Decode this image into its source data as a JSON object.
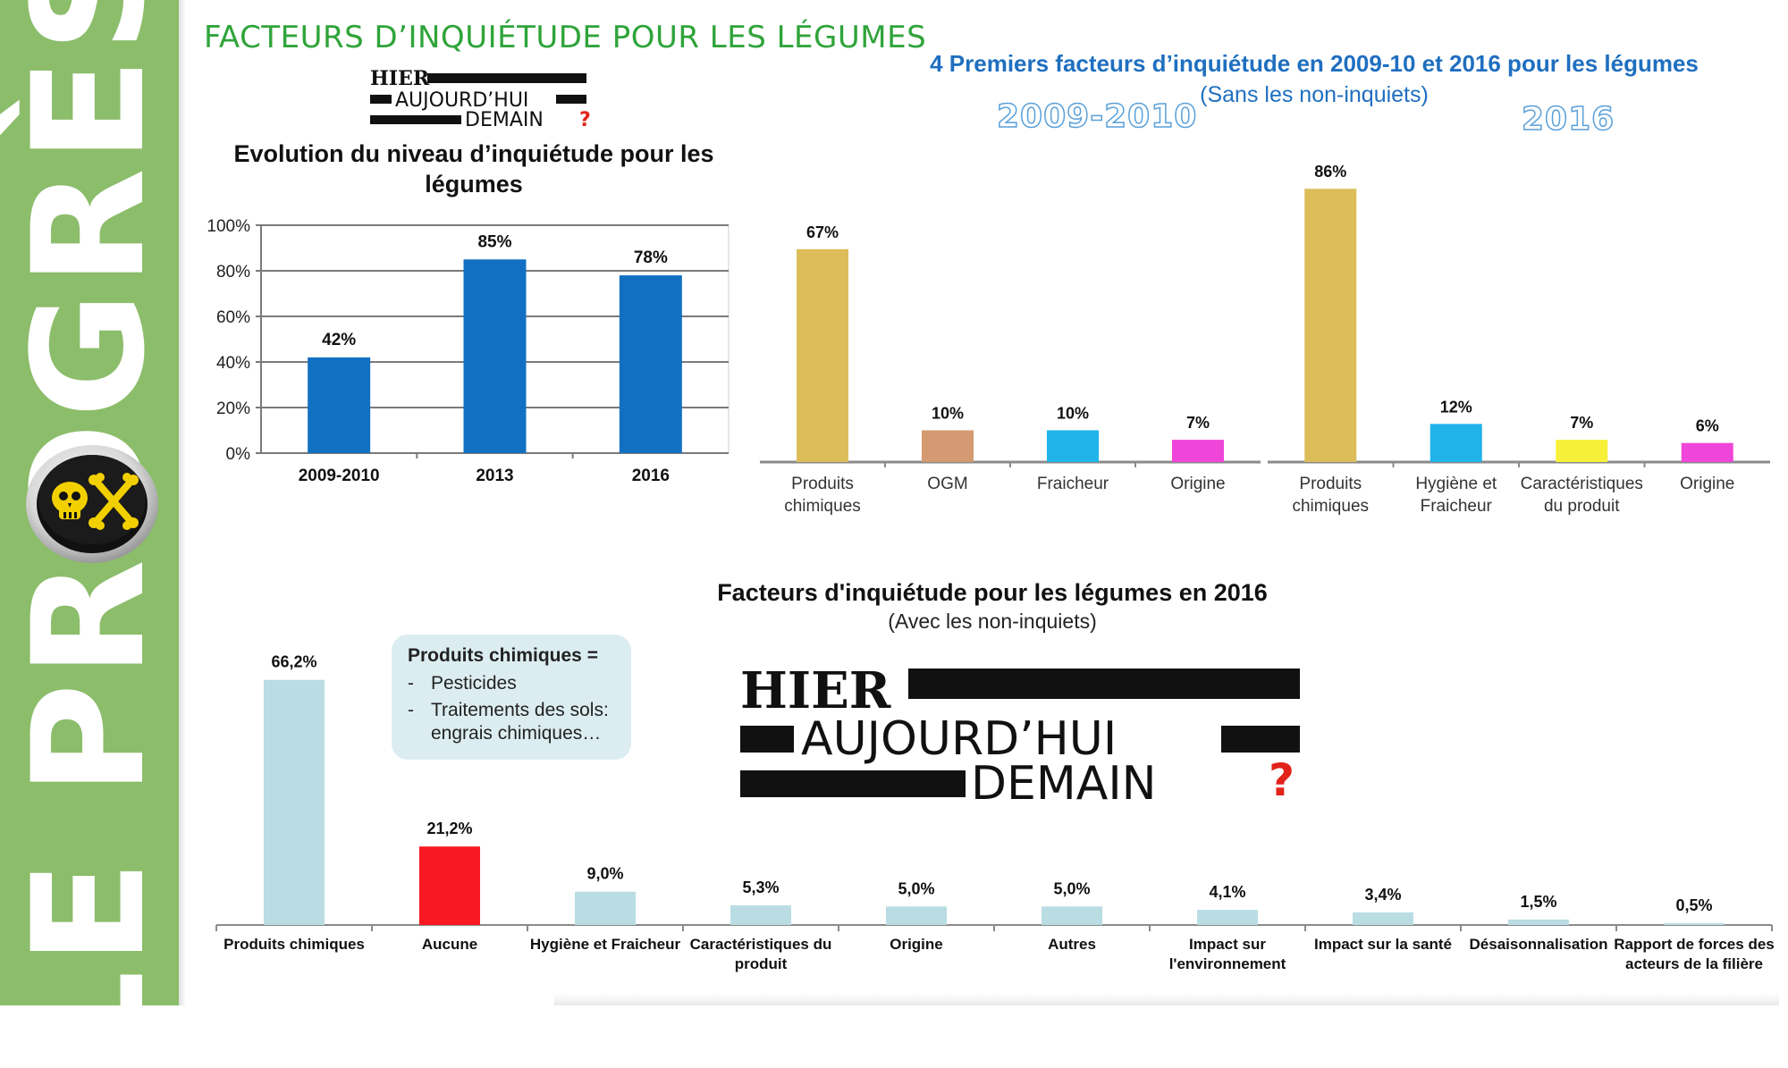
{
  "sidebar": {
    "brand": "LE PROGRÈS",
    "bg_color": "#8cbd6b",
    "badge_icon": "skull-crossbones-icon"
  },
  "page": {
    "heading": "FACTEURS D’INQUIÉTUDE POUR LES LÉGUMES",
    "heading_color": "#2fa43a"
  },
  "logo": {
    "line1": "HIER",
    "line2": "AUJOURD’HUI",
    "line3": "DEMAIN",
    "mark": "?"
  },
  "top": {
    "title": "4 Premiers facteurs d’inquiétude en 2009-10 et 2016 pour les légumes",
    "subtitle": "(Sans les non-inquiets)",
    "year_a": "2009-2010",
    "year_b": "2016"
  },
  "bottom": {
    "title": "Facteurs d'inquiétude pour les légumes en 2016",
    "subtitle": "(Avec les non-inquiets)"
  },
  "callout": {
    "title": "Produits chimiques =",
    "items": [
      "Pesticides",
      "Traitements des sols: engrais chimiques…"
    ]
  },
  "chart_data": [
    {
      "type": "bar",
      "title": "Evolution du niveau d’inquiétude pour les légumes",
      "categories": [
        "2009-2010",
        "2013",
        "2016"
      ],
      "values": [
        42,
        85,
        78
      ],
      "labels": [
        "42%",
        "85%",
        "78%"
      ],
      "yticks": [
        "0%",
        "20%",
        "40%",
        "60%",
        "80%",
        "100%"
      ],
      "ylim": [
        0,
        100
      ],
      "grid": true,
      "color": "#1270c2"
    },
    {
      "type": "bar",
      "title": "2009-2010",
      "categories": [
        "Produits chimiques",
        "OGM",
        "Fraicheur",
        "Origine"
      ],
      "values": [
        67,
        10,
        10,
        7
      ],
      "labels": [
        "67%",
        "10%",
        "10%",
        "7%"
      ],
      "ylim": [
        0,
        90
      ],
      "colors": [
        "#dcbd5a",
        "#d49a72",
        "#1fb3ea",
        "#ef45d8"
      ]
    },
    {
      "type": "bar",
      "title": "2016",
      "categories": [
        "Produits chimiques",
        "Hygiène et Fraicheur",
        "Caractéristiques du produit",
        "Origine"
      ],
      "values": [
        86,
        12,
        7,
        6
      ],
      "labels": [
        "86%",
        "12%",
        "7%",
        "6%"
      ],
      "ylim": [
        0,
        90
      ],
      "colors": [
        "#dcbd5a",
        "#1fb3ea",
        "#f7f03a",
        "#ef45d8"
      ]
    },
    {
      "type": "bar",
      "title": "Facteurs d'inquiétude pour les légumes en 2016",
      "categories": [
        "Produits chimiques",
        "Aucune",
        "Hygiène et Fraicheur",
        "Caractéristiques du produit",
        "Origine",
        "Autres",
        "Impact sur l'environnement",
        "Impact sur la santé",
        "Désaisonnalisation",
        "Rapport de forces des acteurs de la filière"
      ],
      "values": [
        66.2,
        21.2,
        9.0,
        5.3,
        5.0,
        5.0,
        4.1,
        3.4,
        1.5,
        0.5
      ],
      "labels": [
        "66,2%",
        "21,2%",
        "9,0%",
        "5,3%",
        "5,0%",
        "5,0%",
        "4,1%",
        "3,4%",
        "1,5%",
        "0,5%"
      ],
      "ylim": [
        0,
        70
      ],
      "colors": [
        "#b9dde3",
        "#f71821",
        "#b9dde3",
        "#b9dde3",
        "#b9dde3",
        "#b9dde3",
        "#b9dde3",
        "#b9dde3",
        "#b9dde3",
        "#b9dde3"
      ]
    }
  ]
}
